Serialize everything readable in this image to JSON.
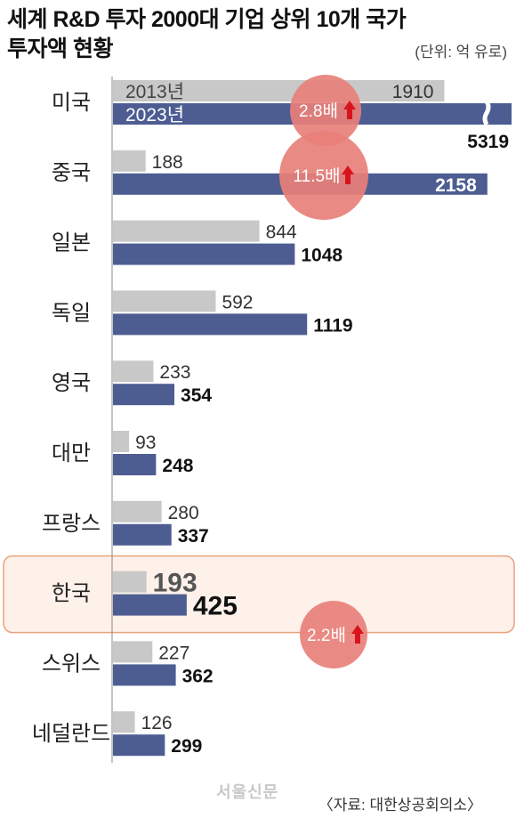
{
  "title_line1": "세계 R&D 투자 2000대 기업 상위 10개 국가",
  "title_line2": "투자액 현황",
  "unit": "(단위: 억 유로)",
  "source": "〈자료: 대한상공회의소〉",
  "watermark": "서울신문",
  "colors": {
    "series2013": "#c8c8c8",
    "series2023": "#4d5d92",
    "circle": "#e8807a",
    "arrow": "#d8131b",
    "highlight_fill": "#fdf1ea",
    "highlight_border": "#e8a27c"
  },
  "chart_data": {
    "type": "bar",
    "orientation": "horizontal",
    "categories": [
      "미국",
      "중국",
      "일본",
      "독일",
      "영국",
      "대만",
      "프랑스",
      "한국",
      "스위스",
      "네덜란드"
    ],
    "series": [
      {
        "name": "2013년",
        "values": [
          1910,
          188,
          844,
          592,
          233,
          93,
          280,
          193,
          227,
          126
        ],
        "labels": [
          "1910",
          "188",
          "844",
          "592",
          "233",
          "93",
          "280",
          "193",
          "227",
          "126"
        ]
      },
      {
        "name": "2023년",
        "values": [
          5319,
          2158,
          1048,
          1119,
          354,
          248,
          337,
          425,
          362,
          299
        ],
        "labels": [
          "5319",
          "2158",
          "1048",
          "1119",
          "354",
          "248",
          "337",
          "425",
          "362",
          "299"
        ]
      }
    ],
    "axis_break": {
      "category": "미국",
      "series": "2023년"
    },
    "highlight_category": "한국",
    "annotations": [
      {
        "category": "미국",
        "text": "2.8배"
      },
      {
        "category": "중국",
        "text": "11.5배"
      },
      {
        "category": "한국",
        "text": "2.2배"
      }
    ]
  }
}
